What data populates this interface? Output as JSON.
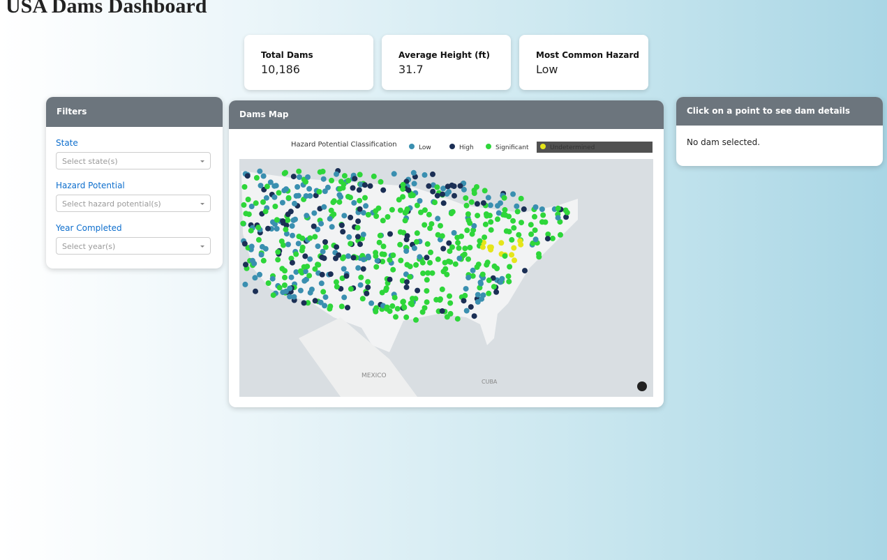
{
  "header": {
    "title": "USA Dams Dashboard"
  },
  "cards": [
    {
      "label": "Total Dams",
      "value": "10,186"
    },
    {
      "label": "Average Height (ft)",
      "value": "31.7"
    },
    {
      "label": "Most Common Hazard",
      "value": "Low"
    }
  ],
  "filters": {
    "title": "Filters",
    "fields": [
      {
        "label": "State",
        "placeholder": "Select state(s)"
      },
      {
        "label": "Hazard Potential",
        "placeholder": "Select hazard potential(s)"
      },
      {
        "label": "Year Completed",
        "placeholder": "Select year(s)"
      }
    ]
  },
  "map": {
    "title": "Dams Map",
    "legend_title": "Hazard Potential Classification",
    "legend": [
      {
        "name": "Low",
        "color": "#3a8fb0"
      },
      {
        "name": "High",
        "color": "#1b2f55"
      },
      {
        "name": "Significant",
        "color": "#2ed63a"
      },
      {
        "name": "Undetermined",
        "color": "#e5e51a"
      }
    ],
    "labels": [
      "MEXICO",
      "CUBA"
    ]
  },
  "details": {
    "title": "Click on a point to see dam details",
    "body": "No dam selected."
  }
}
